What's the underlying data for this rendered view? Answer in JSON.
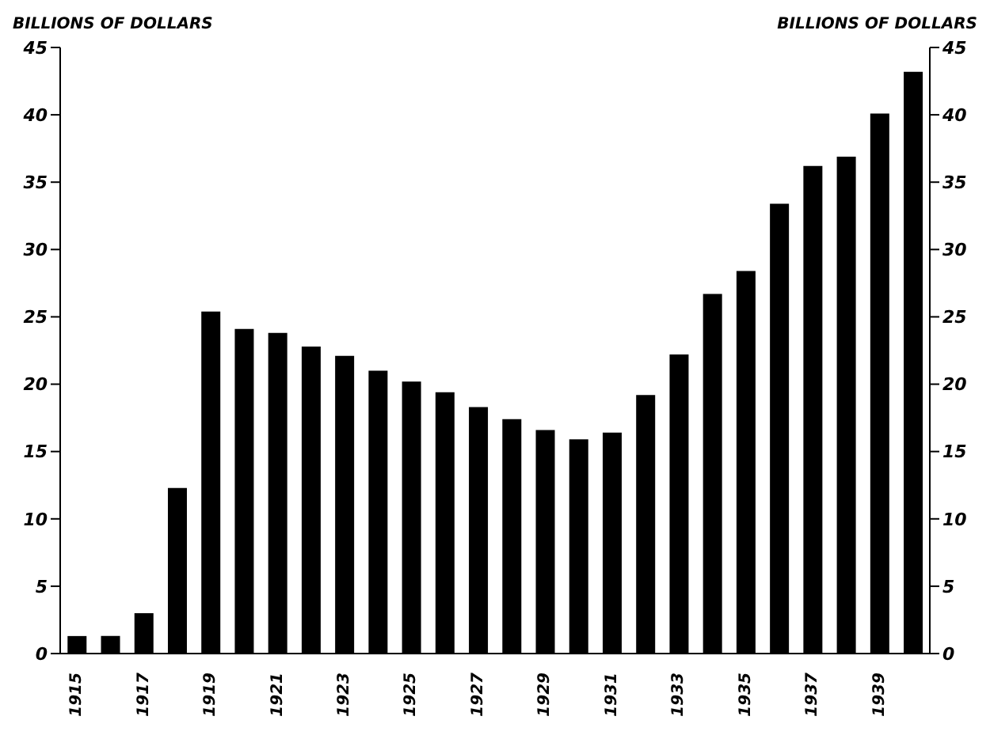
{
  "chart_data": {
    "type": "bar",
    "ylabel": "BILLIONS OF DOLLARS",
    "y2label": "BILLIONS OF DOLLARS",
    "categories": [
      "1915",
      null,
      "1917",
      null,
      "1919",
      null,
      "1921",
      null,
      "1923",
      null,
      "1925",
      null,
      "1927",
      null,
      "1929",
      null,
      "1931",
      null,
      "1933",
      null,
      "1935",
      null,
      "1937",
      null,
      "1939",
      null
    ],
    "values": [
      1.3,
      1.3,
      3.0,
      12.3,
      25.4,
      24.1,
      23.8,
      22.8,
      22.1,
      21.0,
      20.2,
      19.4,
      18.3,
      17.4,
      16.6,
      15.9,
      16.4,
      19.2,
      22.2,
      26.7,
      28.4,
      33.4,
      36.2,
      36.9,
      40.1,
      43.2
    ],
    "color": "#000000",
    "ylim": [
      0,
      45
    ],
    "yticks": [
      0,
      5,
      10,
      15,
      20,
      25,
      30,
      35,
      40,
      45
    ],
    "y2ticks": [
      0,
      5,
      10,
      15,
      20,
      25,
      30,
      35,
      40,
      45
    ],
    "y2lim": [
      0,
      45
    ]
  }
}
